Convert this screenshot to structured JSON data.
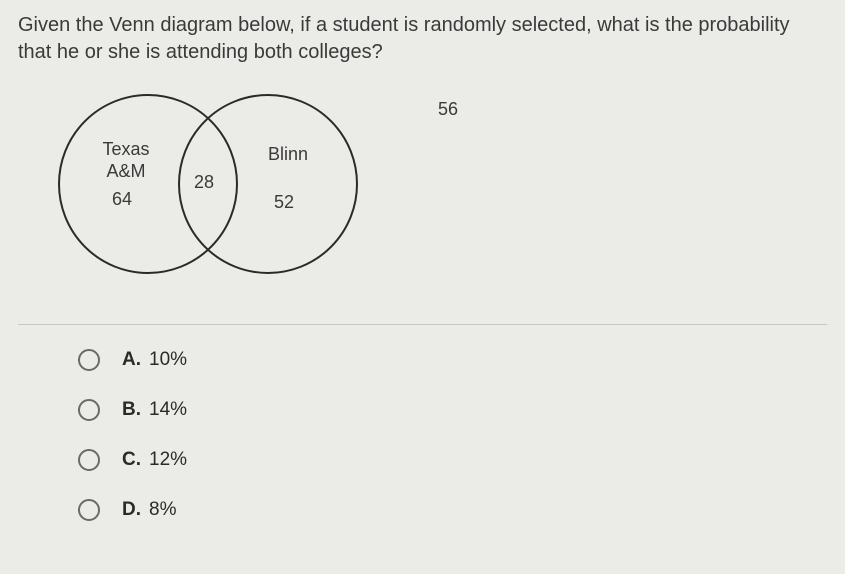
{
  "question_text": "Given the Venn diagram below, if a student is randomly selected, what is the probability that he or she is attending both colleges?",
  "venn": {
    "left_set": {
      "label_line1": "Texas",
      "label_line2": "A&M",
      "value": 64
    },
    "right_set": {
      "label": "Blinn",
      "value": 52
    },
    "intersection_value": 28,
    "outside_value": 56,
    "circle_stroke": "#2a2a2a",
    "circle_stroke_width": 2,
    "text_color": "#3a3a3a",
    "font_size": 18
  },
  "options": [
    {
      "letter": "A.",
      "text": "10%"
    },
    {
      "letter": "B.",
      "text": "14%"
    },
    {
      "letter": "C.",
      "text": "12%"
    },
    {
      "letter": "D.",
      "text": "8%"
    }
  ],
  "colors": {
    "background": "#ebece7",
    "text": "#3a3a3a",
    "divider": "#c8c8c2",
    "radio_border": "#6a6a6a"
  }
}
